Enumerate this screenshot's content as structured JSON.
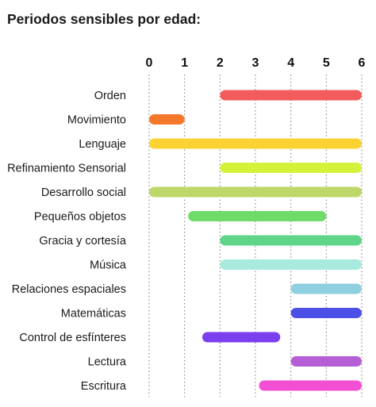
{
  "chart_data": {
    "type": "bar",
    "orientation": "horizontal-range",
    "title": "Periodos sensibles por edad:",
    "x_ticks": [
      "0",
      "1",
      "2",
      "3",
      "4",
      "5",
      "6"
    ],
    "xlim": [
      0,
      6
    ],
    "grid": "vertical dotted",
    "categories": [
      "Orden",
      "Movimiento",
      "Lenguaje",
      "Refinamiento Sensorial",
      "Desarrollo social",
      "Pequeños objetos",
      "Gracia y cortesía",
      "Música",
      "Relaciones espaciales",
      "Matemáticas",
      "Control de esfínteres",
      "Lectura",
      "Escritura"
    ],
    "ranges": [
      {
        "start": 2,
        "end": 6,
        "color": "#f25c5c"
      },
      {
        "start": 0,
        "end": 1,
        "color": "#f5792a"
      },
      {
        "start": 0,
        "end": 6,
        "color": "#fbd232"
      },
      {
        "start": 2,
        "end": 6,
        "color": "#d4f23a"
      },
      {
        "start": 0,
        "end": 6,
        "color": "#bfd66a"
      },
      {
        "start": 1.1,
        "end": 5,
        "color": "#6fdc6a"
      },
      {
        "start": 2,
        "end": 6,
        "color": "#5fd58a"
      },
      {
        "start": 2,
        "end": 6,
        "color": "#a8eadd"
      },
      {
        "start": 4,
        "end": 6,
        "color": "#8fd0e0"
      },
      {
        "start": 4,
        "end": 6,
        "color": "#4c50e6"
      },
      {
        "start": 1.5,
        "end": 3.7,
        "color": "#7b3ff0"
      },
      {
        "start": 4,
        "end": 6,
        "color": "#b65ed6"
      },
      {
        "start": 3.1,
        "end": 6,
        "color": "#f24fd3"
      }
    ]
  }
}
